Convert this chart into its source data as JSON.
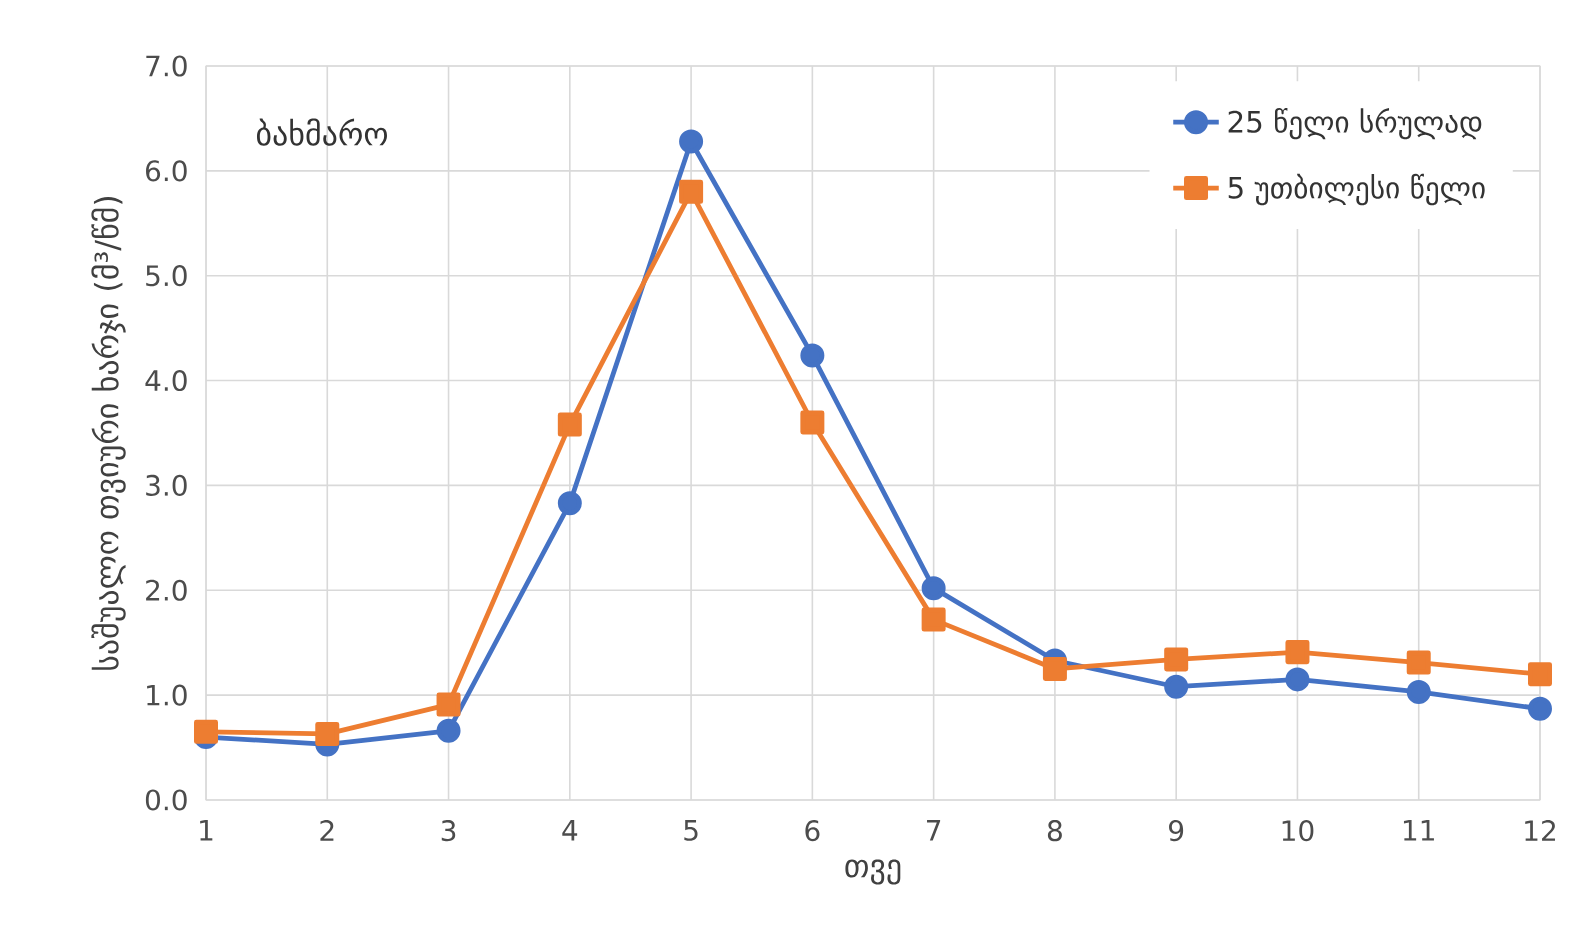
{
  "chart_data": {
    "type": "line",
    "xlabel": "თვე",
    "ylabel": "საშუალო თვიური ხარჯი (მ³/წმ)",
    "annotations": [
      "ბახმარო"
    ],
    "x": [
      1,
      2,
      3,
      4,
      5,
      6,
      7,
      8,
      9,
      10,
      11,
      12
    ],
    "series": [
      {
        "name": "25 წელი სრულად",
        "color": "#4472c4",
        "marker": "circle",
        "values": [
          0.6,
          0.53,
          0.66,
          2.83,
          6.28,
          4.24,
          2.02,
          1.33,
          1.08,
          1.15,
          1.03,
          0.87
        ]
      },
      {
        "name": "5 უთბილესი წელი",
        "color": "#ed7d31",
        "marker": "square",
        "values": [
          0.65,
          0.63,
          0.91,
          3.58,
          5.8,
          3.6,
          1.72,
          1.25,
          1.34,
          1.41,
          1.31,
          1.2
        ]
      }
    ],
    "xlim": [
      1,
      12
    ],
    "xticks": [
      1,
      2,
      3,
      4,
      5,
      6,
      7,
      8,
      9,
      10,
      11,
      12
    ],
    "ylim": [
      0,
      7
    ],
    "yticks": [
      {
        "value": 0,
        "label": "0.0"
      },
      {
        "value": 1,
        "label": "1.0"
      },
      {
        "value": 2,
        "label": "2.0"
      },
      {
        "value": 3,
        "label": "3.0"
      },
      {
        "value": 4,
        "label": "4.0"
      },
      {
        "value": 5,
        "label": "5.0"
      },
      {
        "value": 6,
        "label": "6.0"
      },
      {
        "value": 7,
        "label": "7.0"
      }
    ],
    "grid": true,
    "legend": "top right",
    "line_style": "solid"
  }
}
